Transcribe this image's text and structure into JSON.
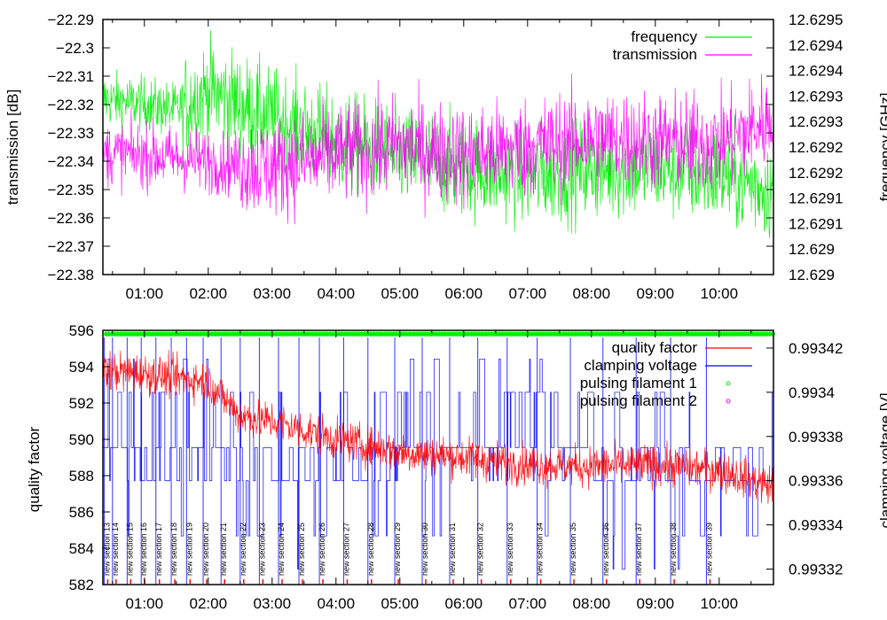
{
  "chart_data": [
    {
      "type": "line",
      "panel": "top",
      "xlabel": "",
      "ylabel": "transmission [dB]",
      "y2label": "frequency [GHz]",
      "xlim_hours": [
        0.35,
        10.85
      ],
      "x_ticks": [
        "01:00",
        "02:00",
        "03:00",
        "04:00",
        "05:00",
        "06:00",
        "07:00",
        "08:00",
        "09:00",
        "10:00"
      ],
      "x_tick_hours": [
        1,
        2,
        3,
        4,
        5,
        6,
        7,
        8,
        9,
        10
      ],
      "ylim": [
        -22.38,
        -22.29
      ],
      "y_ticks": [
        "-22.29",
        "-22.3",
        "-22.31",
        "-22.32",
        "-22.33",
        "-22.34",
        "-22.35",
        "-22.36",
        "-22.37",
        "-22.38"
      ],
      "y_tick_values": [
        -22.29,
        -22.3,
        -22.31,
        -22.32,
        -22.33,
        -22.34,
        -22.35,
        -22.36,
        -22.37,
        -22.38
      ],
      "y2_ticks": [
        "12.6295",
        "12.6294",
        "12.6294",
        "12.6293",
        "12.6293",
        "12.6292",
        "12.6292",
        "12.6291",
        "12.6291",
        "12.629",
        "12.629"
      ],
      "legend_position": "top-right",
      "series": [
        {
          "name": "frequency",
          "color": "#00ee00",
          "axis": "y2",
          "trend_hours": [
            0.35,
            1.0,
            1.5,
            2.0,
            3.0,
            4.0,
            5.0,
            6.0,
            7.0,
            8.0,
            9.0,
            10.0,
            10.85
          ],
          "trend_values_on_left_scale": [
            -22.318,
            -22.32,
            -22.322,
            -22.315,
            -22.325,
            -22.333,
            -22.338,
            -22.342,
            -22.345,
            -22.343,
            -22.342,
            -22.345,
            -22.35
          ]
        },
        {
          "name": "transmission",
          "color": "#ff00ff",
          "axis": "y",
          "trend_hours": [
            0.35,
            1.0,
            2.0,
            3.0,
            4.0,
            5.0,
            6.0,
            7.0,
            8.0,
            9.0,
            10.0,
            10.85
          ],
          "trend_values": [
            -22.337,
            -22.338,
            -22.34,
            -22.342,
            -22.338,
            -22.335,
            -22.338,
            -22.335,
            -22.332,
            -22.333,
            -22.334,
            -22.325
          ]
        }
      ]
    },
    {
      "type": "line",
      "panel": "bottom",
      "xlabel": "",
      "ylabel": "quality factor",
      "y2label": "clamping voltage [V]",
      "xlim_hours": [
        0.35,
        10.85
      ],
      "x_ticks": [
        "01:00",
        "02:00",
        "03:00",
        "04:00",
        "05:00",
        "06:00",
        "07:00",
        "08:00",
        "09:00",
        "10:00"
      ],
      "x_tick_hours": [
        1,
        2,
        3,
        4,
        5,
        6,
        7,
        8,
        9,
        10
      ],
      "ylim": [
        582,
        596
      ],
      "y_ticks": [
        "596",
        "594",
        "592",
        "590",
        "588",
        "586",
        "584",
        "582"
      ],
      "y_tick_values": [
        596,
        594,
        592,
        590,
        588,
        586,
        584,
        582
      ],
      "y2lim": [
        0.993313,
        0.993428
      ],
      "y2_ticks": [
        "0.99342",
        "0.9934",
        "0.99338",
        "0.99336",
        "0.99334",
        "0.99332"
      ],
      "y2_tick_values": [
        0.99342,
        0.9934,
        0.99338,
        0.99336,
        0.99334,
        0.99332
      ],
      "legend_position": "top-right",
      "series": [
        {
          "name": "quality factor",
          "color": "#ff0000",
          "axis": "y",
          "trend_hours": [
            0.35,
            1.0,
            2.0,
            2.5,
            3.0,
            4.0,
            5.0,
            6.0,
            7.0,
            8.0,
            9.0,
            10.0,
            10.85
          ],
          "trend_values": [
            593.8,
            593.6,
            593.2,
            591.3,
            591.0,
            590.0,
            589.3,
            589.0,
            588.6,
            588.5,
            588.6,
            588.3,
            587.4
          ]
        },
        {
          "name": "clamping voltage",
          "color": "#0000ff",
          "axis": "y2",
          "levels": [
            0.99332,
            0.99334,
            0.99336,
            0.99338,
            0.9934,
            0.99342
          ]
        },
        {
          "name": "pulsing filament 1",
          "color": "#00ee00",
          "marker": "circle",
          "value": 595.8
        },
        {
          "name": "pulsing filament 2",
          "color": "#ff00ff",
          "marker": "circle"
        }
      ],
      "annotations": [
        {
          "label": "new section 13",
          "hour": 0.37
        },
        {
          "label": "new section 14",
          "hour": 0.5
        },
        {
          "label": "new section 15",
          "hour": 0.73
        },
        {
          "label": "new section 16",
          "hour": 0.95
        },
        {
          "label": "new section 17",
          "hour": 1.18
        },
        {
          "label": "new section 18",
          "hour": 1.42
        },
        {
          "label": "new section 19",
          "hour": 1.66
        },
        {
          "label": "new section 20",
          "hour": 1.92
        },
        {
          "label": "new section 21",
          "hour": 2.2
        },
        {
          "label": "new section 22",
          "hour": 2.5
        },
        {
          "label": "new section 23",
          "hour": 2.8
        },
        {
          "label": "new section 24",
          "hour": 3.1
        },
        {
          "label": "new section 25",
          "hour": 3.42
        },
        {
          "label": "new section 26",
          "hour": 3.74
        },
        {
          "label": "new section 27",
          "hour": 4.12
        },
        {
          "label": "new section 28",
          "hour": 4.5
        },
        {
          "label": "new section 29",
          "hour": 4.92
        },
        {
          "label": "new section 30",
          "hour": 5.35
        },
        {
          "label": "new section 31",
          "hour": 5.78
        },
        {
          "label": "new section 32",
          "hour": 6.22
        },
        {
          "label": "new section 33",
          "hour": 6.68
        },
        {
          "label": "new section 34",
          "hour": 7.15
        },
        {
          "label": "new section 35",
          "hour": 7.67
        },
        {
          "label": "new section 36",
          "hour": 8.18
        },
        {
          "label": "new section 37",
          "hour": 8.7
        },
        {
          "label": "new section 38",
          "hour": 9.24
        },
        {
          "label": "new section 39",
          "hour": 9.8
        }
      ]
    }
  ]
}
